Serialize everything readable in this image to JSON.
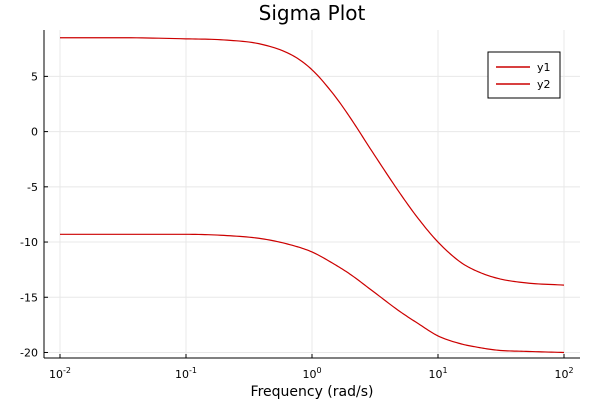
{
  "chart_data": {
    "type": "line",
    "title": "Sigma Plot",
    "xlabel": "Frequency (rad/s)",
    "ylabel": "",
    "xscale": "log",
    "xlim": [
      0.01,
      100
    ],
    "ylim": [
      -20.5,
      9.2
    ],
    "x_ticks": [
      {
        "value": 0.01,
        "base": "10",
        "exp": "-2"
      },
      {
        "value": 0.1,
        "base": "10",
        "exp": "-1"
      },
      {
        "value": 1,
        "base": "10",
        "exp": "0"
      },
      {
        "value": 10,
        "base": "10",
        "exp": "1"
      },
      {
        "value": 100,
        "base": "10",
        "exp": "2"
      }
    ],
    "y_ticks": [
      {
        "value": 5,
        "label": "5"
      },
      {
        "value": 0,
        "label": "0"
      },
      {
        "value": -5,
        "label": "-5"
      },
      {
        "value": -10,
        "label": "-10"
      },
      {
        "value": -15,
        "label": "-15"
      },
      {
        "value": -20,
        "label": "-20"
      }
    ],
    "grid": true,
    "legend_position": "top-right",
    "series": [
      {
        "name": "y1",
        "color": "#cc0000",
        "x": [
          0.01,
          0.03,
          0.1,
          0.2,
          0.4,
          0.7,
          1,
          1.5,
          2,
          3,
          5,
          7,
          10,
          15,
          20,
          30,
          50,
          100
        ],
        "y": [
          8.5,
          8.5,
          8.4,
          8.3,
          7.9,
          6.9,
          5.6,
          3.3,
          1.3,
          -1.8,
          -5.6,
          -7.9,
          -10.0,
          -11.8,
          -12.6,
          -13.3,
          -13.7,
          -13.9
        ]
      },
      {
        "name": "y2",
        "color": "#cc0000",
        "x": [
          0.01,
          0.03,
          0.1,
          0.2,
          0.4,
          0.7,
          1,
          1.5,
          2,
          3,
          5,
          7,
          10,
          15,
          20,
          30,
          50,
          100
        ],
        "y": [
          -9.3,
          -9.3,
          -9.3,
          -9.4,
          -9.7,
          -10.3,
          -10.9,
          -12.0,
          -12.9,
          -14.4,
          -16.3,
          -17.4,
          -18.5,
          -19.2,
          -19.5,
          -19.8,
          -19.9,
          -20.0
        ]
      }
    ]
  },
  "colors": {
    "axis": "#000000",
    "grid": "#e8e8e8",
    "background": "#ffffff"
  }
}
